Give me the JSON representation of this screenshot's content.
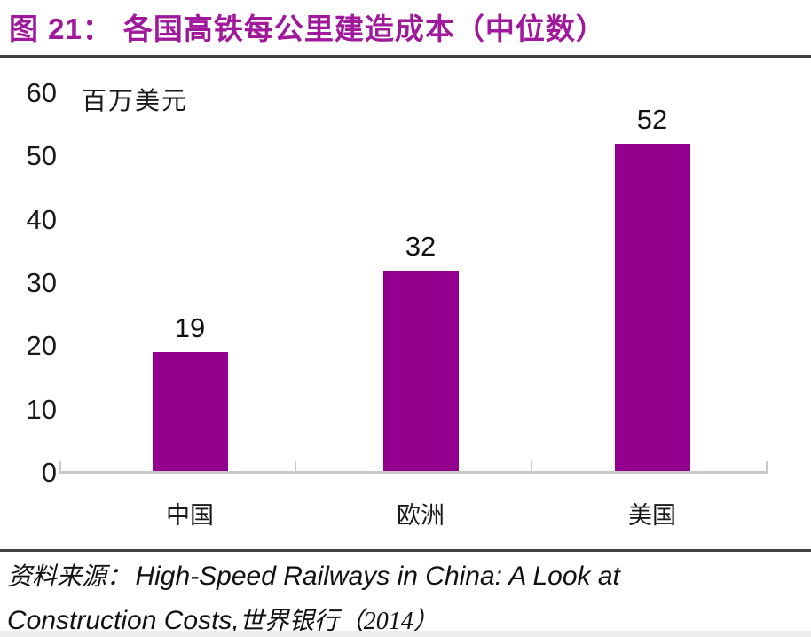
{
  "header": {
    "figure_label": "图 21：",
    "title": "各国高铁每公里建造成本（中位数）"
  },
  "chart_data": {
    "type": "bar",
    "title": "各国高铁每公里建造成本（中位数）",
    "xlabel": "",
    "ylabel": "百万美元",
    "categories": [
      "中国",
      "欧洲",
      "美国"
    ],
    "values": [
      19,
      32,
      52
    ],
    "value_labels": [
      "19",
      "32",
      "52"
    ],
    "ylim": [
      0,
      60
    ],
    "yticks": [
      0,
      10,
      20,
      30,
      40,
      50,
      60
    ],
    "grid": false,
    "legend": false,
    "bar_color": "#93008D"
  },
  "source": {
    "label": "资料来源：",
    "line1_en": "High-Speed Railways in China: A Look at",
    "line2_en": "Construction Costs,",
    "line2_cn": "世界银行（2014）"
  },
  "colors": {
    "accent": "#A0189B",
    "bar": "#93008D",
    "axis": "#C9C9C9",
    "rule": "#414141"
  }
}
